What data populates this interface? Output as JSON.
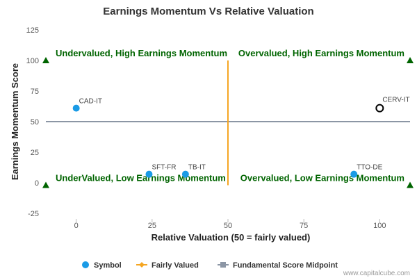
{
  "chart_data": {
    "type": "scatter",
    "title": "Earnings Momentum Vs Relative Valuation",
    "xlabel": "Relative Valuation (50 = fairly valued)",
    "ylabel": "Earnings Momentum Score",
    "xlim": [
      -10,
      110
    ],
    "ylim": [
      -25,
      125
    ],
    "x_ticks": [
      0,
      25,
      50,
      75,
      100
    ],
    "y_ticks": [
      -25,
      0,
      25,
      50,
      75,
      100,
      125
    ],
    "grid": false,
    "series": [
      {
        "name": "Symbol",
        "color": "#1a9be6",
        "points": [
          {
            "label": "CAD-IT",
            "x": 0,
            "y": 61
          },
          {
            "label": "SFT-FR",
            "x": 24,
            "y": 7
          },
          {
            "label": "TB-IT",
            "x": 36,
            "y": 7
          },
          {
            "label": "TTO-DE",
            "x": 91.5,
            "y": 7
          }
        ]
      },
      {
        "name": "Fairly Valued",
        "color": "#f5a623",
        "x": [
          50,
          50
        ],
        "y": [
          -2,
          100
        ]
      },
      {
        "name": "Fundamental Score Midpoint",
        "color": "#8c96a5",
        "x": [
          -10,
          110
        ],
        "y": [
          50,
          50
        ]
      }
    ],
    "highlight": {
      "label": "CERV-IT",
      "x": 100,
      "y": 61
    },
    "quadrant_labels": {
      "top_left": "Undervalued, High Earnings Momentum",
      "top_right": "Overvalued, High Earnings Momentum",
      "bottom_left": "UnderValued, Low Earnings Momentum",
      "bottom_right": "Overvalued, Low Earnings Momentum"
    },
    "quadrant_color": "#006400",
    "legend_position": "bottom-center",
    "credit": "www.capitalcube.com"
  }
}
